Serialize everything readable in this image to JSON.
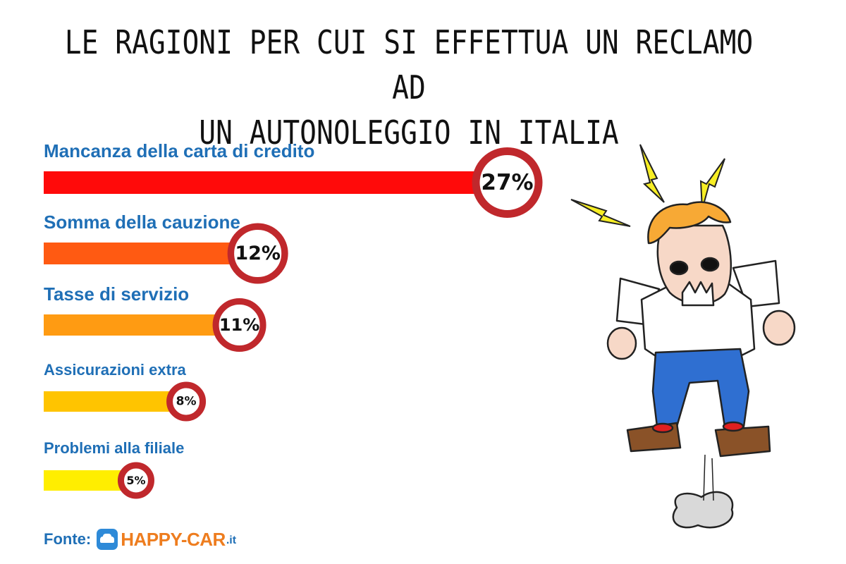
{
  "title_lines": [
    "LE RAGIONI PER CUI SI EFFETTUA UN RECLAMO AD",
    "UN AUTONOLEGGIO IN ITALIA"
  ],
  "source": {
    "label": "Fonte:",
    "logo_text": "HAPPY-CAR",
    "logo_tld": ".it"
  },
  "chart_data": {
    "type": "bar",
    "orientation": "horizontal",
    "title": "LE RAGIONI PER CUI SI EFFETTUA UN RECLAMO AD UN AUTONOLEGGIO IN ITALIA",
    "categories": [
      "Mancanza della carta di credito",
      "Somma della cauzione",
      "Tasse di servizio",
      "Assicurazioni extra",
      "Problemi alla filiale"
    ],
    "values": [
      27,
      12,
      11,
      8,
      5
    ],
    "value_labels": [
      "27%",
      "12%",
      "11%",
      "8%",
      "5%"
    ],
    "unit": "%",
    "bar_colors": [
      "#ff0a0a",
      "#ff5a12",
      "#ff9b12",
      "#ffc400",
      "#ffee00"
    ],
    "ring_color": "#c0282c",
    "label_color": "#1f6fb6",
    "grid": false,
    "legend": "none"
  }
}
